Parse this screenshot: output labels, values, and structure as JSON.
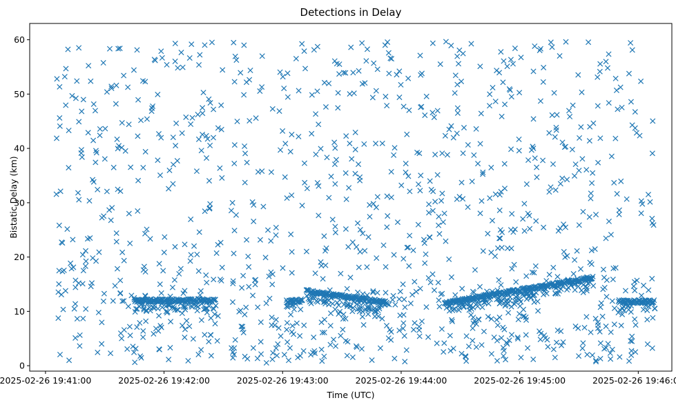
{
  "chart_data": {
    "type": "scatter",
    "title": "Detections in Delay",
    "xlabel": "Time (UTC)",
    "ylabel": "Bistatic Delay (km)",
    "marker": "x",
    "color": "#1f77b4",
    "xlim": [
      "2025-02-26 19:40:52",
      "2025-02-26 19:46:17"
    ],
    "ylim": [
      -1,
      63
    ],
    "xticks": [
      "2025-02-26 19:41:00",
      "2025-02-26 19:42:00",
      "2025-02-26 19:43:00",
      "2025-02-26 19:44:00",
      "2025-02-26 19:45:00",
      "2025-02-26 19:46:00"
    ],
    "yticks": [
      0,
      10,
      20,
      30,
      40,
      50,
      60
    ],
    "grid": false,
    "legend": "none",
    "time_span": [
      "2025-02-26 19:41:05",
      "2025-02-26 19:46:08"
    ],
    "gaps": [
      [
        "2025-02-26 19:42:31",
        "2025-02-26 19:42:34"
      ]
    ],
    "tracks": [
      {
        "start": "2025-02-26 19:41:45",
        "end": "2025-02-26 19:42:26",
        "delay_start": 12.0,
        "delay_end": 12.0
      },
      {
        "start": "2025-02-26 19:43:02",
        "end": "2025-02-26 19:43:10",
        "delay_start": 11.8,
        "delay_end": 12.0
      },
      {
        "start": "2025-02-26 19:43:12",
        "end": "2025-02-26 19:43:53",
        "delay_start": 13.7,
        "delay_end": 11.6
      },
      {
        "start": "2025-02-26 19:44:22",
        "end": "2025-02-26 19:45:37",
        "delay_start": 11.5,
        "delay_end": 16.2
      },
      {
        "start": "2025-02-26 19:45:50",
        "end": "2025-02-26 19:46:08",
        "delay_start": 11.8,
        "delay_end": 11.8
      }
    ],
    "clutter_delay_range": [
      0.5,
      60
    ],
    "clutter_point_count": 1150
  }
}
